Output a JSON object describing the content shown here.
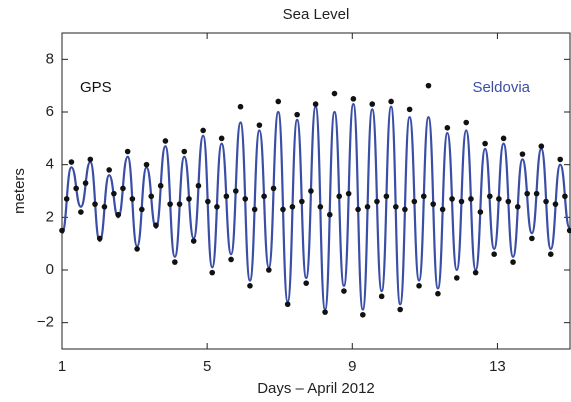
{
  "chart_data": {
    "type": "line",
    "title": "Sea Level",
    "xlabel": "Days – April 2012",
    "ylabel": "meters",
    "xlim": [
      1,
      15
    ],
    "ylim": [
      -3,
      9
    ],
    "xticks": [
      1,
      5,
      9,
      13
    ],
    "yticks": [
      {
        "value": -2,
        "label": "−2"
      },
      0,
      2,
      4,
      6,
      8
    ],
    "series": [
      {
        "name": "GPS",
        "color": "#111111",
        "marker": "dot",
        "x": [
          1.0,
          1.13,
          1.26,
          1.39,
          1.52,
          1.65,
          1.78,
          1.91,
          2.04,
          2.17,
          2.3,
          2.43,
          2.55,
          2.68,
          2.81,
          2.94,
          3.07,
          3.2,
          3.33,
          3.46,
          3.59,
          3.72,
          3.85,
          3.98,
          4.11,
          4.24,
          4.37,
          4.5,
          4.63,
          4.76,
          4.89,
          5.02,
          5.14,
          5.27,
          5.4,
          5.53,
          5.66,
          5.79,
          5.92,
          6.05,
          6.18,
          6.31,
          6.44,
          6.57,
          6.7,
          6.83,
          6.96,
          7.09,
          7.22,
          7.35,
          7.48,
          7.61,
          7.73,
          7.86,
          7.99,
          8.12,
          8.25,
          8.38,
          8.51,
          8.64,
          8.77,
          8.9,
          9.03,
          9.16,
          9.29,
          9.42,
          9.55,
          9.68,
          9.81,
          9.94,
          10.07,
          10.2,
          10.32,
          10.45,
          10.58,
          10.71,
          10.84,
          10.97,
          11.1,
          11.23,
          11.36,
          11.49,
          11.62,
          11.75,
          11.88,
          12.01,
          12.14,
          12.27,
          12.4,
          12.53,
          12.66,
          12.79,
          12.91,
          13.04,
          13.17,
          13.3,
          13.43,
          13.56,
          13.69,
          13.82,
          13.95,
          14.08,
          14.21,
          14.34,
          14.47,
          14.6,
          14.73,
          14.86,
          14.99
        ],
        "values": [
          1.5,
          2.7,
          4.1,
          3.1,
          2.2,
          3.3,
          4.2,
          2.5,
          1.2,
          2.4,
          3.8,
          2.9,
          2.1,
          3.1,
          4.5,
          2.7,
          0.8,
          2.3,
          4.0,
          2.8,
          1.7,
          3.2,
          4.9,
          2.5,
          0.3,
          2.5,
          4.5,
          2.7,
          1.1,
          3.2,
          5.3,
          2.6,
          -0.1,
          2.4,
          5.0,
          2.8,
          0.4,
          3.0,
          6.2,
          2.7,
          -0.6,
          2.3,
          5.5,
          2.8,
          0.0,
          3.1,
          6.4,
          2.3,
          -1.3,
          2.4,
          5.9,
          2.6,
          -0.5,
          3.0,
          6.3,
          2.4,
          -1.6,
          2.1,
          6.7,
          2.8,
          -0.8,
          2.9,
          6.5,
          2.3,
          -1.7,
          2.4,
          6.3,
          2.6,
          -1.0,
          2.8,
          6.4,
          2.4,
          -1.5,
          2.3,
          6.1,
          2.6,
          -0.6,
          2.8,
          7.0,
          2.5,
          -0.9,
          2.3,
          5.4,
          2.7,
          -0.3,
          2.6,
          5.6,
          2.7,
          -0.1,
          2.2,
          4.8,
          2.8,
          0.6,
          2.7,
          5.0,
          2.6,
          0.3,
          2.4,
          4.4,
          2.9,
          1.2,
          2.9,
          4.7,
          2.6,
          0.6,
          2.5,
          4.2,
          2.8,
          1.5
        ]
      },
      {
        "name": "Seldovia",
        "color": "#3b4ea6",
        "marker": "line",
        "x": [
          1.0,
          1.26,
          1.52,
          1.78,
          2.04,
          2.3,
          2.55,
          2.81,
          3.07,
          3.33,
          3.59,
          3.85,
          4.11,
          4.37,
          4.63,
          4.89,
          5.14,
          5.4,
          5.66,
          5.92,
          6.18,
          6.44,
          6.7,
          6.96,
          7.22,
          7.48,
          7.73,
          7.99,
          8.25,
          8.51,
          8.77,
          9.03,
          9.29,
          9.55,
          9.81,
          10.07,
          10.32,
          10.58,
          10.84,
          11.1,
          11.36,
          11.62,
          11.88,
          12.14,
          12.4,
          12.66,
          12.91,
          13.17,
          13.43,
          13.69,
          13.95,
          14.21,
          14.47,
          14.73,
          14.99
        ],
        "values": [
          1.4,
          3.9,
          2.4,
          4.1,
          1.1,
          3.6,
          2.0,
          4.3,
          0.9,
          3.9,
          1.6,
          4.7,
          0.5,
          4.3,
          1.2,
          5.1,
          0.1,
          4.8,
          0.6,
          5.6,
          -0.4,
          5.3,
          0.1,
          6.0,
          -1.2,
          5.7,
          -0.3,
          6.2,
          -1.5,
          6.0,
          -0.6,
          6.3,
          -1.5,
          6.1,
          -0.8,
          6.2,
          -1.3,
          5.8,
          -0.4,
          5.8,
          -0.7,
          5.2,
          0.0,
          5.3,
          0.0,
          4.6,
          0.8,
          4.8,
          0.5,
          4.2,
          1.4,
          4.6,
          0.8,
          4.0,
          1.6
        ]
      }
    ]
  }
}
